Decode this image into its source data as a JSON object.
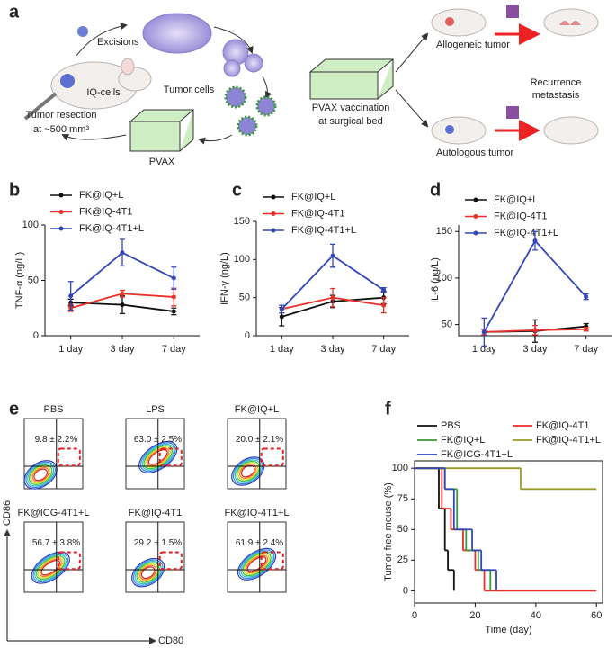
{
  "panel_a": {
    "label": "a",
    "excisions": "Excisions",
    "tumor_cells": "Tumor cells",
    "iq_cells": "IQ-cells",
    "resection": [
      "Tumor resection",
      "at ~500 mm³"
    ],
    "pvax": "PVAX",
    "vaccination": [
      "PVAX vaccination",
      "at surgical bed"
    ],
    "allogeneic": "Allogeneic tumor",
    "recurrence": [
      "Recurrence",
      "metastasis"
    ],
    "autologous": "Autologous tumor"
  },
  "panel_e": {
    "label": "e",
    "y_axis": "CD86",
    "x_axis": "CD80",
    "plots": [
      {
        "title": "PBS",
        "value": "9.8 ± 2.2%"
      },
      {
        "title": "LPS",
        "value": "63.0 ± 2.5%"
      },
      {
        "title": "FK@IQ+L",
        "value": "20.0 ± 2.1%"
      },
      {
        "title": "FK@ICG-4T1+L",
        "value": "56.7 ± 3.8%"
      },
      {
        "title": "FK@IQ-4T1",
        "value": "29.2 ± 1.5%"
      },
      {
        "title": "FK@IQ-4T1+L",
        "value": "61.9 ± 2.4%"
      }
    ]
  },
  "chart_data": [
    {
      "type": "line",
      "panel": "b",
      "ylabel": "TNF-α (ng/L)",
      "categories": [
        "1 day",
        "3 day",
        "7 day"
      ],
      "ylim": [
        0,
        100
      ],
      "yticks": [
        0,
        50,
        100
      ],
      "series": [
        {
          "name": "FK@IQ+L",
          "color": "#111111",
          "values": [
            30,
            28,
            22
          ],
          "errors": [
            3,
            8,
            3
          ]
        },
        {
          "name": "FK@IQ-4T1",
          "color": "#e8312a",
          "values": [
            25,
            38,
            35
          ],
          "errors": [
            3,
            3,
            8
          ]
        },
        {
          "name": "FK@IQ-4T1+L",
          "color": "#3246b8",
          "values": [
            36,
            75,
            52
          ],
          "errors": [
            13,
            12,
            10
          ]
        }
      ]
    },
    {
      "type": "line",
      "panel": "c",
      "ylabel": "IFN-γ (ng/L)",
      "categories": [
        "1 day",
        "3 day",
        "7 day"
      ],
      "ylim": [
        0,
        150
      ],
      "yticks": [
        0,
        50,
        100,
        150
      ],
      "series": [
        {
          "name": "FK@IQ+L",
          "color": "#111111",
          "values": [
            25,
            45,
            50
          ],
          "errors": [
            12,
            8,
            8
          ]
        },
        {
          "name": "FK@IQ-4T1",
          "color": "#e8312a",
          "values": [
            35,
            50,
            40
          ],
          "errors": [
            5,
            12,
            10
          ]
        },
        {
          "name": "FK@IQ-4T1+L",
          "color": "#3246b8",
          "values": [
            35,
            105,
            60
          ],
          "errors": [
            5,
            15,
            3
          ]
        }
      ]
    },
    {
      "type": "line",
      "panel": "d",
      "ylabel": "IL-6 (ng/L)",
      "categories": [
        "1 day",
        "3 day",
        "7 day"
      ],
      "ylim": [
        38,
        157
      ],
      "yticks": [
        50,
        100,
        150
      ],
      "series": [
        {
          "name": "FK@IQ+L",
          "color": "#111111",
          "values": [
            42,
            43,
            48
          ],
          "errors": [
            3,
            12,
            3
          ]
        },
        {
          "name": "FK@IQ-4T1",
          "color": "#e8312a",
          "values": [
            42,
            44,
            45
          ],
          "errors": [
            3,
            5,
            2
          ]
        },
        {
          "name": "FK@IQ-4T1+L",
          "color": "#3246b8",
          "values": [
            42,
            140,
            80
          ],
          "errors": [
            15,
            10,
            3
          ]
        }
      ]
    },
    {
      "type": "step",
      "panel": "f",
      "xlabel": "Time (day)",
      "ylabel": "Tumor free mouse (%)",
      "xlim": [
        0,
        62
      ],
      "xticks": [
        0,
        20,
        40,
        60
      ],
      "ylim": [
        -10,
        106
      ],
      "yticks": [
        0,
        25,
        50,
        75,
        100
      ],
      "series": [
        {
          "name": "PBS",
          "color": "#111111",
          "x": [
            0,
            8,
            10,
            11,
            13
          ],
          "values": [
            100,
            67,
            33,
            17,
            0
          ]
        },
        {
          "name": "FK@IQ-4T1",
          "color": "#e8312a",
          "x": [
            0,
            9,
            12,
            16,
            20,
            23,
            60
          ],
          "values": [
            100,
            67,
            50,
            33,
            17,
            0,
            0
          ]
        },
        {
          "name": "FK@IQ+L",
          "color": "#3a9a3a",
          "x": [
            0,
            10,
            14,
            17,
            21,
            25
          ],
          "values": [
            100,
            83,
            50,
            33,
            17,
            0
          ]
        },
        {
          "name": "FK@IQ-4T1+L",
          "color": "#9a9a2a",
          "x": [
            0,
            35,
            60
          ],
          "values": [
            100,
            83,
            83
          ]
        },
        {
          "name": "FK@ICG-4T1+L",
          "color": "#3246b8",
          "x": [
            0,
            10,
            13,
            19,
            22,
            27
          ],
          "values": [
            100,
            83,
            50,
            33,
            17,
            0
          ]
        }
      ]
    }
  ]
}
